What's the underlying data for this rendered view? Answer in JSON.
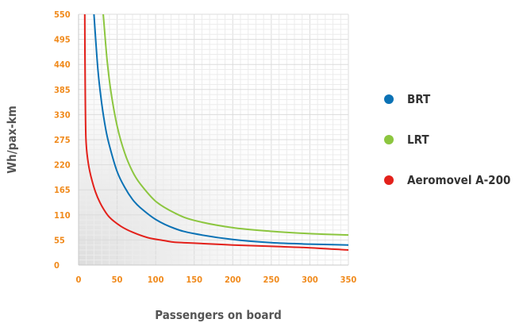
{
  "chart_data": {
    "type": "line",
    "xlabel": "Passengers on board",
    "ylabel": "Wh/pax-km",
    "xlim": [
      0,
      350
    ],
    "ylim": [
      0,
      550
    ],
    "xticks": [
      0,
      50,
      100,
      150,
      200,
      250,
      300,
      350
    ],
    "yticks": [
      0,
      55,
      110,
      165,
      220,
      275,
      330,
      385,
      440,
      495,
      550
    ],
    "grid": true,
    "legend_position": "right",
    "series": [
      {
        "name": "BRT",
        "color": "#0b72b5",
        "x": [
          20,
          25,
          30,
          35,
          40,
          50,
          60,
          70,
          80,
          100,
          125,
          150,
          200,
          250,
          300,
          350
        ],
        "y": [
          550,
          430,
          355,
          300,
          262,
          205,
          170,
          144,
          126,
          100,
          80,
          69,
          56,
          49,
          46,
          44
        ]
      },
      {
        "name": "LRT",
        "color": "#8cc63f",
        "x": [
          32,
          37,
          42,
          50,
          60,
          70,
          80,
          100,
          125,
          150,
          200,
          250,
          300,
          350
        ],
        "y": [
          550,
          450,
          380,
          305,
          245,
          205,
          178,
          140,
          114,
          98,
          82,
          74,
          69,
          66
        ]
      },
      {
        "name": "Aeromovel A-200",
        "color": "#e3211b",
        "x": [
          8,
          8.5,
          9.5,
          12,
          16,
          22,
          30,
          40,
          55,
          70,
          90,
          110,
          125,
          150,
          200,
          250,
          300,
          350
        ],
        "y": [
          550,
          400,
          280,
          230,
          195,
          160,
          130,
          105,
          85,
          72,
          60,
          54,
          50,
          48,
          44,
          41,
          38,
          33
        ]
      }
    ]
  }
}
